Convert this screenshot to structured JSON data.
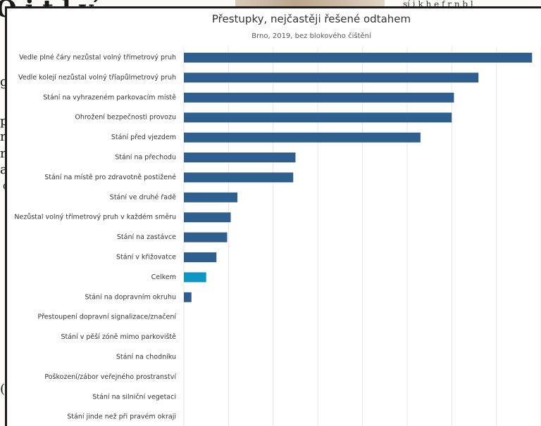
{
  "background": {
    "heading_fragment": "O     i  t       l   v  ́",
    "left_fragments": [
      "g",
      "p",
      "n",
      "n",
      "a",
      "d",
      "(c"
    ],
    "right_fragment": "sí i k  h e   f    r   n  b  l"
  },
  "colors": {
    "bar": "#2e5f8e",
    "bar_highlight": "#0a97c4",
    "grid": "#e6e6e6",
    "text": "#333333"
  },
  "chart_data": {
    "type": "bar",
    "orientation": "horizontal",
    "title": "Přestupky, nejčastěji řešené odtahem",
    "subtitle": "Brno, 2019, bez blokového čištění",
    "xlabel": "",
    "ylabel": "",
    "grid": true,
    "highlight_category": "Celkem",
    "categories": [
      "Vedle plné čáry nezůstal volný třímetrový pruh",
      "Vedle kolejí nezůstal volný tříapůlmetrový pruh",
      "Stání na vyhrazeném parkovacím místě",
      "Ohrožení bezpečnosti provozu",
      "Stání před vjezdem",
      "Stání na přechodu",
      "Stání na místě pro zdravotně postižené",
      "Stání ve druhé řadě",
      "Nezůstal volný třímetrový pruh v každém směru",
      "Stání na zastávce",
      "Stání v křižovatce",
      "Celkem",
      "Stání na dopravním okruhu",
      "Přestoupení dopravní signalizace/značení",
      "Stání v pěší zóně mimo parkoviště",
      "Stání na chodníku",
      "Poškození/zábor veřejného prostranství",
      "Stání na silniční vegetaci",
      "Stání jinde než při pravém okraji"
    ],
    "values": [
      7.8,
      6.6,
      6.05,
      6.0,
      5.3,
      2.5,
      2.45,
      1.2,
      1.05,
      0.97,
      0.73,
      0.5,
      0.17,
      0,
      0,
      0,
      0,
      0,
      0
    ],
    "xlim": [
      0,
      8
    ],
    "grid_step": 1
  }
}
